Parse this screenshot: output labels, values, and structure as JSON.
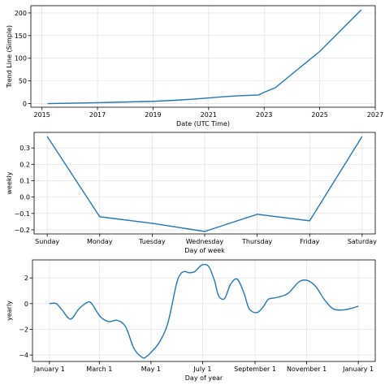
{
  "chart_data": [
    {
      "type": "line",
      "xlabel": "Date (UTC Time)",
      "ylabel": "Trend Line (Simple)",
      "xlim": [
        2014.6,
        2027.0
      ],
      "ylim": [
        -8,
        216
      ],
      "xticks": [
        2015,
        2017,
        2019,
        2021,
        2023,
        2025,
        2027
      ],
      "xtick_labels": [
        "2015",
        "2017",
        "2019",
        "2021",
        "2023",
        "2025",
        "2027"
      ],
      "yticks": [
        0,
        50,
        100,
        150,
        200
      ],
      "ytick_labels": [
        "0",
        "50",
        "100",
        "150",
        "200"
      ],
      "grid": true,
      "series": [
        {
          "x": [
            2015.2,
            2017.0,
            2019.0,
            2019.7,
            2020.5,
            2021.5,
            2022.0,
            2022.8,
            2023.0,
            2023.4,
            2024.0,
            2025.0,
            2026.5
          ],
          "y": [
            0,
            2,
            5,
            7,
            10,
            15,
            17,
            19,
            25,
            35,
            65,
            115,
            207
          ]
        }
      ]
    },
    {
      "type": "line",
      "xlabel": "Day of week",
      "ylabel": "weekly",
      "xlim": [
        -0.25,
        6.25
      ],
      "ylim": [
        -0.225,
        0.395
      ],
      "xticks": [
        0,
        1,
        2,
        3,
        4,
        5,
        6
      ],
      "xtick_labels": [
        "Sunday",
        "Monday",
        "Tuesday",
        "Wednesday",
        "Thursday",
        "Friday",
        "Saturday"
      ],
      "yticks": [
        -0.2,
        -0.1,
        0.0,
        0.1,
        0.2,
        0.3
      ],
      "ytick_labels": [
        "−0.2",
        "−0.1",
        "0.0",
        "0.1",
        "0.2",
        "0.3"
      ],
      "grid": true,
      "series": [
        {
          "x": [
            0,
            1,
            2,
            3,
            4,
            5,
            6
          ],
          "y": [
            0.37,
            -0.12,
            -0.16,
            -0.21,
            -0.105,
            -0.145,
            0.37
          ]
        }
      ]
    },
    {
      "type": "line",
      "xlabel": "Day of year",
      "ylabel": "yearly",
      "xlim": [
        -20,
        385
      ],
      "ylim": [
        -4.5,
        3.4
      ],
      "xticks": [
        0,
        59,
        120,
        181,
        243,
        304,
        365
      ],
      "xtick_labels": [
        "January 1",
        "March 1",
        "May 1",
        "July 1",
        "September 1",
        "November 1",
        "January 1"
      ],
      "yticks": [
        -4,
        -2,
        0,
        2
      ],
      "ytick_labels": [
        "−4",
        "−2",
        "0",
        "2"
      ],
      "grid": true,
      "series": [
        {
          "x": [
            0,
            8,
            15,
            25,
            35,
            45,
            50,
            60,
            70,
            80,
            90,
            100,
            110,
            115,
            120,
            130,
            140,
            150,
            155,
            160,
            165,
            172,
            180,
            188,
            195,
            200,
            207,
            214,
            222,
            230,
            236,
            245,
            252,
            258,
            262,
            270,
            282,
            295,
            305,
            315,
            325,
            335,
            345,
            355,
            365
          ],
          "y": [
            0,
            0,
            -0.5,
            -1.2,
            -0.4,
            0.1,
            0,
            -1.0,
            -1.4,
            -1.3,
            -1.8,
            -3.5,
            -4.2,
            -4.1,
            -3.8,
            -3.0,
            -1.5,
            1.5,
            2.3,
            2.5,
            2.4,
            2.5,
            3.0,
            2.9,
            1.8,
            0.6,
            0.4,
            1.5,
            1.9,
            0.8,
            -0.4,
            -0.7,
            -0.3,
            0.3,
            0.4,
            0.5,
            0.8,
            1.7,
            1.8,
            1.3,
            0.3,
            -0.4,
            -0.5,
            -0.4,
            -0.2
          ]
        }
      ]
    }
  ]
}
